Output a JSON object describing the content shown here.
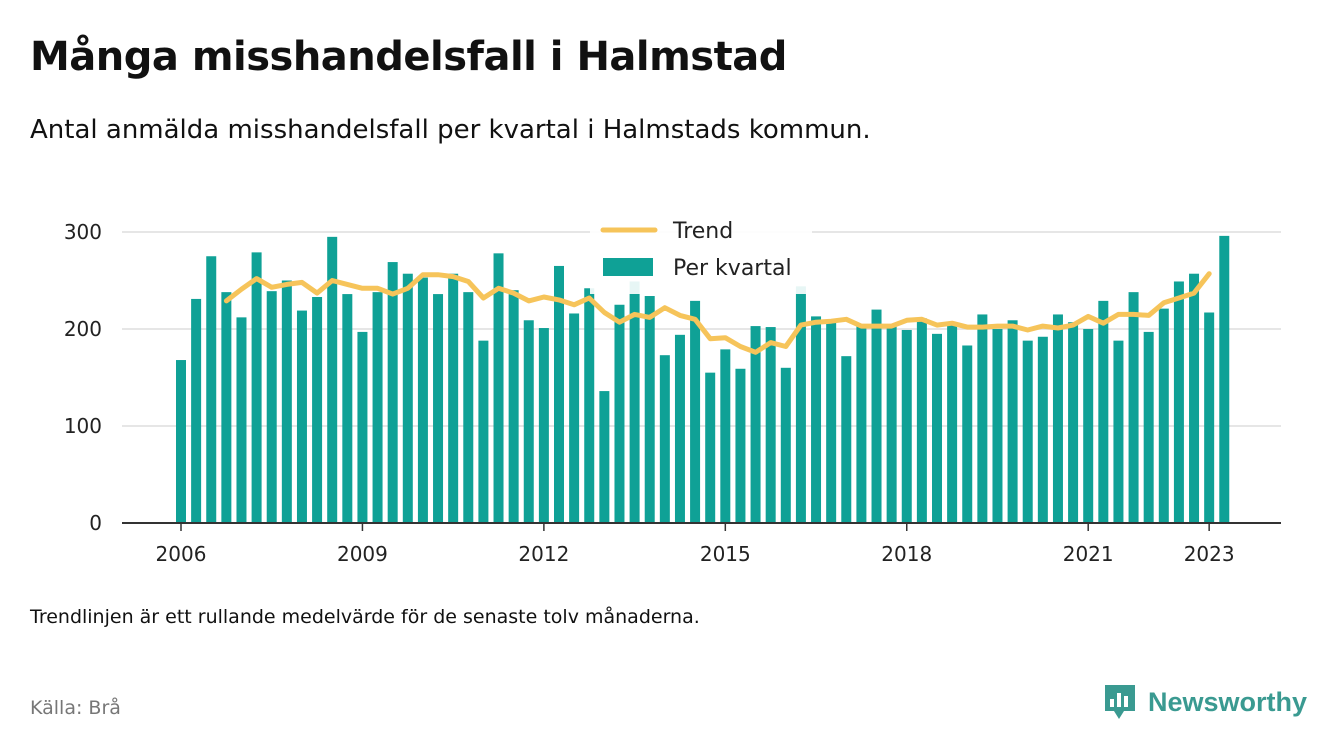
{
  "title": "Många misshandelsfall i Halmstad",
  "subtitle": "Antal anmälda misshandelsfall per kvartal i Halmstads kommun.",
  "footnote": "Trendlinjen är ett rullande medelvärde för de senaste tolv månaderna.",
  "source": "Källa: Brå",
  "brand": "Newsworthy",
  "colors": {
    "bars": "#0fa196",
    "trend": "#f6c45a",
    "brand": "#3a9a91"
  },
  "chart_data": {
    "type": "bar",
    "title": "Många misshandelsfall i Halmstad",
    "subtitle": "Antal anmälda misshandelsfall per kvartal i Halmstads kommun.",
    "xlabel": "",
    "ylabel": "",
    "ylim": [
      0,
      300
    ],
    "yticks": [
      "0",
      "100",
      "200",
      "300"
    ],
    "xticks": [
      "2006",
      "2009",
      "2012",
      "2015",
      "2018",
      "2021",
      "2023"
    ],
    "xtick_years": [
      2006,
      2009,
      2012,
      2015,
      2018,
      2021,
      2023
    ],
    "grid": "horizontal",
    "legend": {
      "placement": "top-center",
      "trend_label": "Trend",
      "bars_label": "Per kvartal"
    },
    "start_year": 2006,
    "start_quarter": 1,
    "series": [
      {
        "name": "Per kvartal",
        "kind": "bar",
        "values": [
          168,
          231,
          275,
          238,
          212,
          279,
          239,
          250,
          219,
          233,
          295,
          236,
          197,
          238,
          269,
          257,
          253,
          236,
          257,
          238,
          188,
          278,
          240,
          209,
          201,
          265,
          216,
          242,
          136,
          225,
          249,
          234,
          173,
          194,
          229,
          155,
          179,
          159,
          203,
          202,
          160,
          244,
          213,
          207,
          172,
          205,
          220,
          203,
          199,
          211,
          195,
          207,
          183,
          215,
          200,
          209,
          188,
          192,
          215,
          207,
          200,
          229,
          188,
          238,
          197,
          221,
          249,
          257,
          217,
          296
        ]
      },
      {
        "name": "Trend",
        "kind": "line",
        "start_index": 3,
        "values": [
          229,
          241,
          252,
          243,
          246,
          248,
          237,
          250,
          246,
          242,
          242,
          236,
          242,
          256,
          256,
          254,
          249,
          232,
          242,
          237,
          229,
          233,
          230,
          225,
          232,
          217,
          207,
          215,
          212,
          222,
          214,
          210,
          190,
          191,
          182,
          176,
          186,
          182,
          204,
          207,
          208,
          210,
          203,
          203,
          203,
          209,
          210,
          204,
          206,
          202,
          202,
          203,
          203,
          199,
          203,
          201,
          204,
          213,
          206,
          215,
          215,
          214,
          227,
          232,
          237,
          257
        ]
      }
    ]
  }
}
